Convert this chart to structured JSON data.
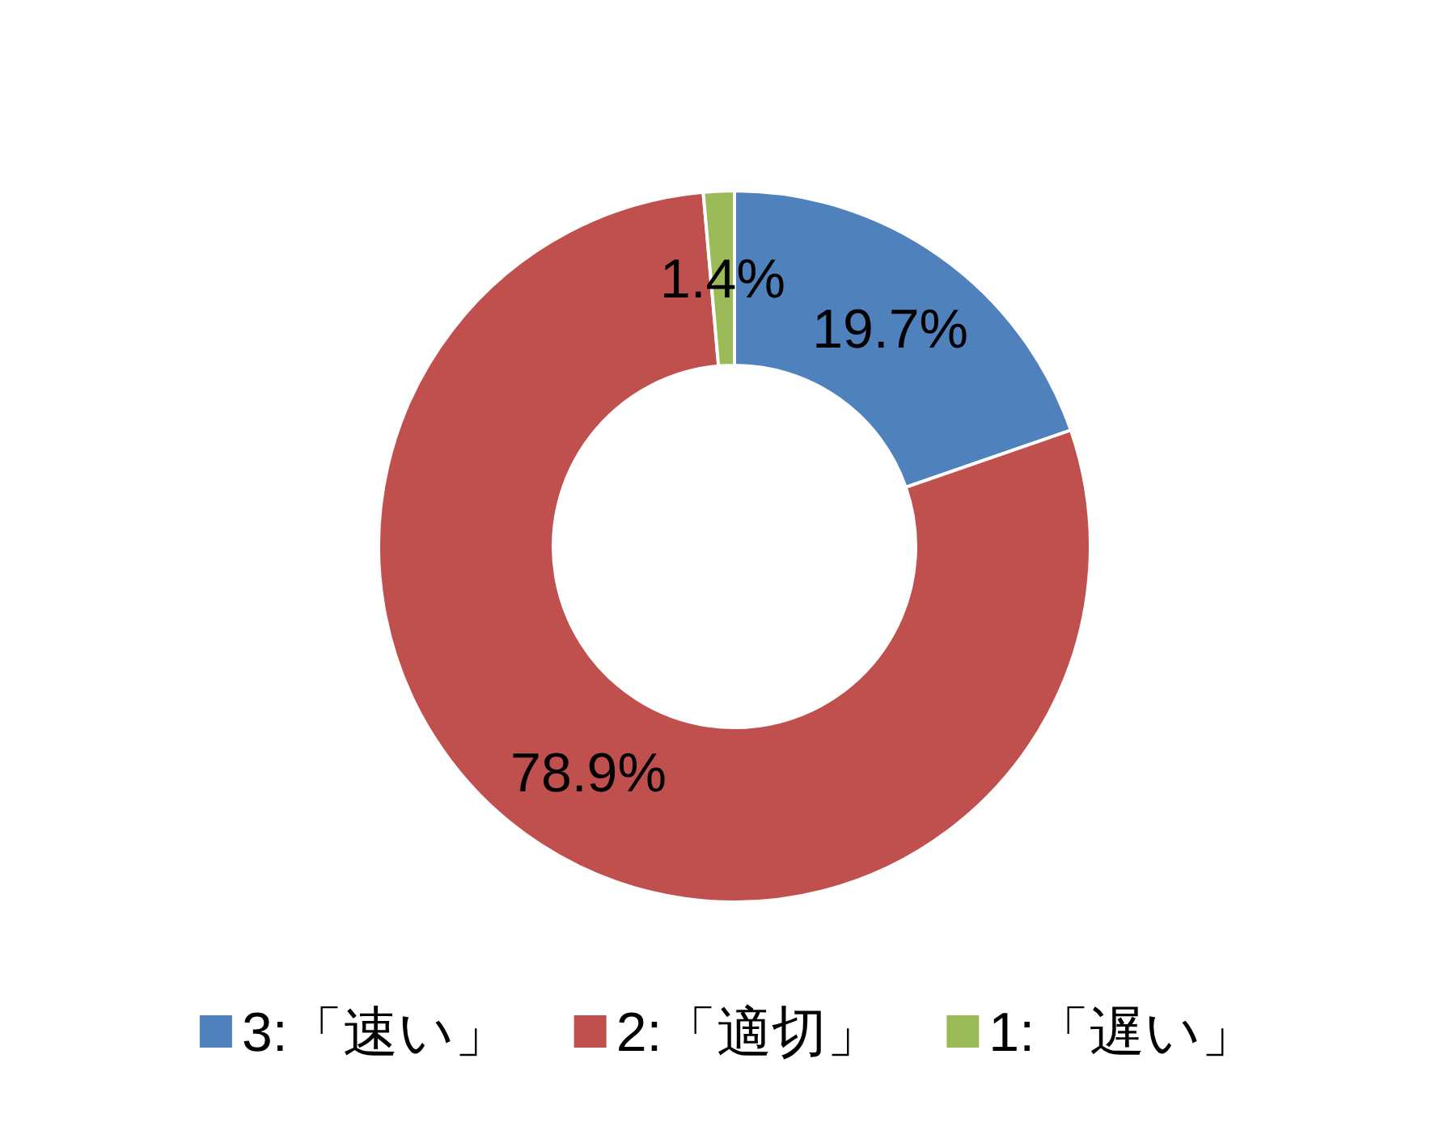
{
  "chart_data": {
    "type": "donut",
    "categories": [
      "3:「速い」",
      "2:「適切」",
      "1:「遅い」"
    ],
    "values": [
      19.7,
      78.9,
      1.4
    ],
    "colors": [
      "#4f81bd",
      "#c0504d",
      "#9bbb59"
    ],
    "value_labels": [
      "19.7%",
      "78.9%",
      "1.4%"
    ],
    "legend": "bottom"
  }
}
